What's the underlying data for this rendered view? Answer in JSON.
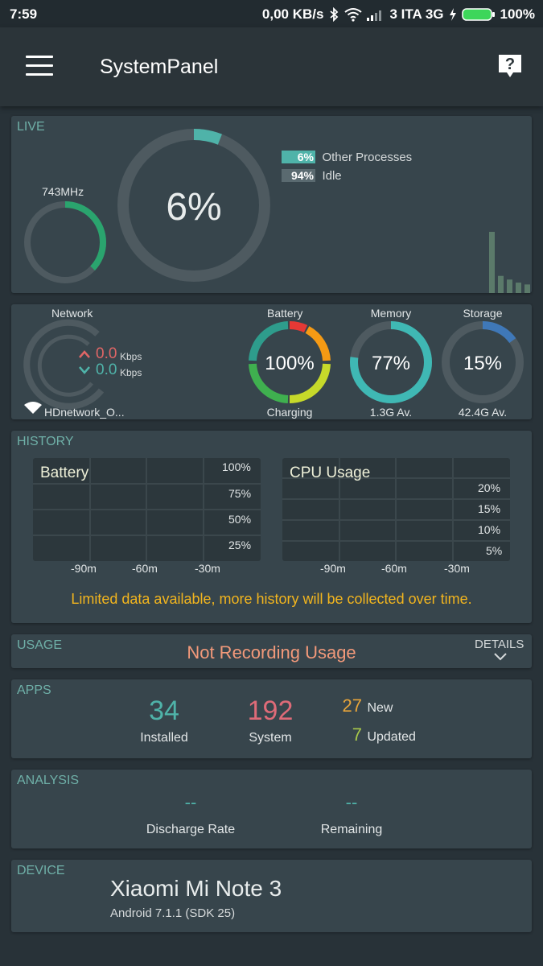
{
  "status_bar": {
    "time": "7:59",
    "speed": "0,00 KB/s",
    "carrier": "3 ITA 3G",
    "battery": "100%",
    "icons": [
      "bluetooth-icon",
      "wifi-icon",
      "signal-icon",
      "charging-icon",
      "battery-icon"
    ]
  },
  "app_bar": {
    "title": "SystemPanel",
    "menu_icon": "hamburger-menu-icon",
    "help_icon": "help-icon"
  },
  "live": {
    "label": "LIVE",
    "freq": "743MHz",
    "freq_fill": 0.37,
    "cpu_percent": "6%",
    "cpu_fill": 0.06,
    "legend": [
      {
        "value": "6%",
        "label": "Other Processes",
        "color": "#4fb3a9"
      },
      {
        "value": "94%",
        "label": "Idle",
        "color": "#5a6a70"
      }
    ],
    "activity_bars": [
      1.0,
      0.28,
      0.22,
      0.17,
      0.14
    ]
  },
  "gauges": {
    "network": {
      "label": "Network",
      "up": "0.0",
      "down": "0.0",
      "unit": "Kbps",
      "ssid": "HDnetwork_O..."
    },
    "battery": {
      "label": "Battery",
      "value": "100%",
      "sub": "Charging"
    },
    "memory": {
      "label": "Memory",
      "value": "77%",
      "sub": "1.3G Av.",
      "fill": 0.77,
      "color": "#3fb8b4"
    },
    "storage": {
      "label": "Storage",
      "value": "15%",
      "sub": "42.4G Av.",
      "fill": 0.15,
      "color": "#3f78b8"
    }
  },
  "history": {
    "label": "HISTORY",
    "battery_title": "Battery",
    "battery_ticks": [
      "100%",
      "75%",
      "50%",
      "25%"
    ],
    "cpu_title": "CPU Usage",
    "cpu_ticks": [
      "20%",
      "15%",
      "10%",
      "5%"
    ],
    "x_ticks": [
      "-90m",
      "-60m",
      "-30m"
    ],
    "notice": "Limited data available, more history will be collected over time."
  },
  "usage": {
    "label": "USAGE",
    "status": "Not Recording Usage",
    "details": "DETAILS"
  },
  "apps": {
    "label": "APPS",
    "installed_count": "34",
    "installed_label": "Installed",
    "system_count": "192",
    "system_label": "System",
    "new_count": "27",
    "new_label": "New",
    "updated_count": "7",
    "updated_label": "Updated"
  },
  "analysis": {
    "label": "ANALYSIS",
    "discharge_value": "--",
    "discharge_label": "Discharge Rate",
    "remaining_value": "--",
    "remaining_label": "Remaining"
  },
  "device": {
    "label": "DEVICE",
    "name": "Xiaomi Mi Note 3",
    "os": "Android 7.1.1 (SDK 25)"
  }
}
